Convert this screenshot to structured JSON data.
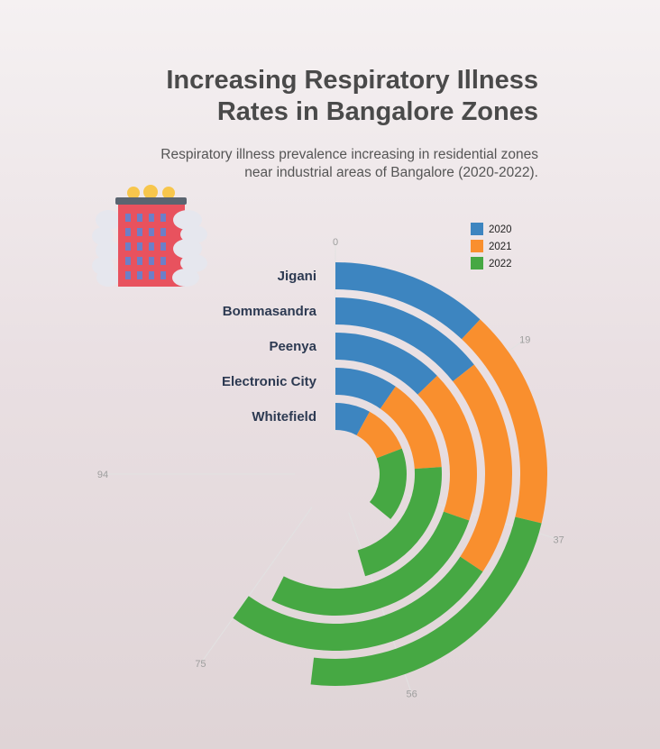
{
  "title_line1": "Increasing Respiratory Illness",
  "title_line2": "Rates in Bangalore Zones",
  "subtitle_line1": "Respiratory illness prevalence increasing in residential zones",
  "subtitle_line2": "near industrial areas of Bangalore (2020-2022).",
  "icon": "factory-building-icon",
  "colors": {
    "2020": "#3d85c0",
    "2021": "#f98f2e",
    "2022": "#46a843"
  },
  "chart_data": {
    "type": "radial_stacked_bar",
    "title": "Increasing Respiratory Illness Rates in Bangalore Zones",
    "subtitle": "Respiratory illness prevalence increasing in residential zones near industrial areas of Bangalore (2020-2022).",
    "categories": [
      "Jigani",
      "Bommasandra",
      "Peenya",
      "Electronic City",
      "Whitefield"
    ],
    "series": [
      {
        "name": "2020",
        "values": [
          15,
          18,
          16,
          12,
          10
        ]
      },
      {
        "name": "2021",
        "values": [
          21,
          25,
          22,
          18,
          14
        ]
      },
      {
        "name": "2022",
        "values": [
          29,
          32,
          34,
          27,
          21
        ]
      }
    ],
    "axis_ticks": [
      "0",
      "19",
      "37",
      "56",
      "75",
      "94"
    ],
    "axis_max": 94,
    "legend": [
      "2020",
      "2021",
      "2022"
    ],
    "legend_position": "top-right"
  }
}
